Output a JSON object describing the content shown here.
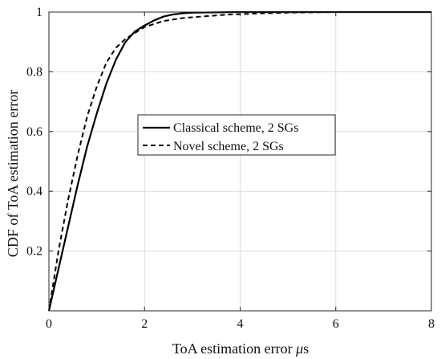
{
  "chart_data": {
    "type": "line",
    "xlabel_main": "ToA estimation error ",
    "xlabel_unit_mu": "μ",
    "xlabel_unit_s": "s",
    "ylabel": "CDF of ToA estimation error",
    "xlim": [
      0,
      8
    ],
    "ylim": [
      0,
      1
    ],
    "x_ticks": [
      0,
      2,
      4,
      6,
      8
    ],
    "y_ticks": [
      0.2,
      0.4,
      0.6,
      0.8,
      1
    ],
    "x_tick_labels": [
      "0",
      "2",
      "4",
      "6",
      "8"
    ],
    "y_tick_labels": [
      "0.2",
      "0.4",
      "0.6",
      "0.8",
      "1"
    ],
    "grid": true,
    "legend_position": "center",
    "series": [
      {
        "name": "Classical scheme, 2 SGs",
        "style": "solid",
        "color": "#000000",
        "x": [
          0,
          0.1,
          0.2,
          0.4,
          0.6,
          0.8,
          1.0,
          1.2,
          1.4,
          1.6,
          1.8,
          2.0,
          2.2,
          2.4,
          2.6,
          2.8,
          3.0,
          3.5,
          4.0,
          5.0,
          6.0,
          7.0,
          8.0
        ],
        "y": [
          0,
          0.07,
          0.14,
          0.28,
          0.42,
          0.55,
          0.66,
          0.76,
          0.84,
          0.9,
          0.935,
          0.955,
          0.972,
          0.985,
          0.992,
          0.996,
          0.998,
          0.999,
          1.0,
          1.0,
          1.0,
          1.0,
          1.0
        ]
      },
      {
        "name": "Novel scheme, 2 SGs",
        "style": "dashed",
        "color": "#000000",
        "x": [
          0,
          0.1,
          0.2,
          0.4,
          0.6,
          0.8,
          1.0,
          1.2,
          1.4,
          1.6,
          1.8,
          2.0,
          2.4,
          2.8,
          3.2,
          3.6,
          4.0,
          4.5,
          5.0,
          6.0,
          7.0,
          8.0
        ],
        "y": [
          0,
          0.1,
          0.2,
          0.37,
          0.52,
          0.65,
          0.75,
          0.83,
          0.88,
          0.91,
          0.93,
          0.95,
          0.97,
          0.98,
          0.985,
          0.99,
          0.993,
          0.996,
          0.998,
          1.0,
          1.0,
          1.0
        ]
      }
    ]
  }
}
